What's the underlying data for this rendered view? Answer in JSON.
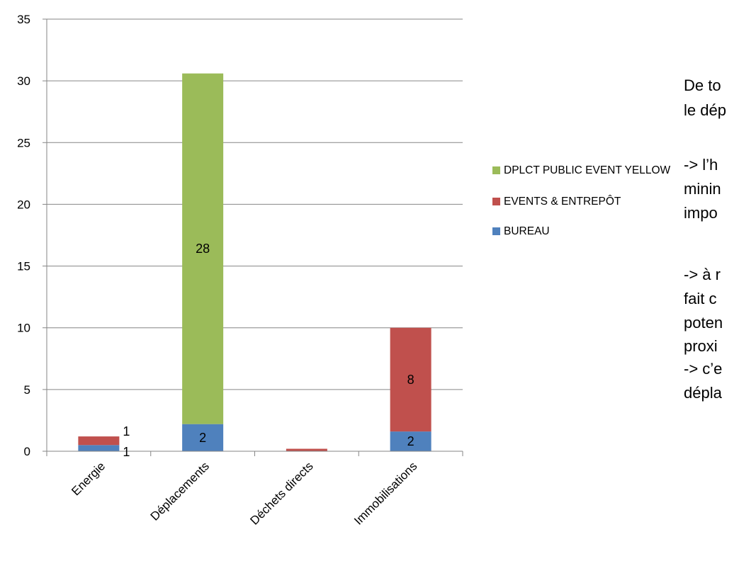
{
  "chart_data": {
    "type": "bar",
    "stacked": true,
    "categories": [
      "Energie",
      "Déplacements",
      "Déchets directs",
      "Immobilisations"
    ],
    "series": [
      {
        "name": "BUREAU",
        "color": "#4f81bd",
        "values": [
          0.5,
          2.2,
          0,
          1.6
        ],
        "labels": [
          "1",
          "2",
          "",
          "2"
        ]
      },
      {
        "name": "EVENTS & ENTREPÔT",
        "color": "#c0504d",
        "values": [
          0.7,
          0,
          0.2,
          8.4
        ],
        "labels": [
          "1",
          "",
          "",
          "8"
        ]
      },
      {
        "name": "DPLCT PUBLIC EVENT YELLOW",
        "color": "#9bbb59",
        "values": [
          0,
          28.4,
          0,
          0
        ],
        "labels": [
          "",
          "28",
          "",
          ""
        ]
      }
    ],
    "yticks": [
      "0",
      "5",
      "10",
      "15",
      "20",
      "25",
      "30",
      "35"
    ],
    "ylim": [
      0,
      35
    ],
    "grid": true,
    "legend_position": "right",
    "gridline_color": "#868686"
  },
  "side_text": {
    "lines": [
      "De to",
      "le dép",
      "",
      "-> l’h",
      "minin",
      "impo",
      "",
      "-> à r",
      "fait c",
      "poten",
      "proxi",
      "-> c’e",
      "dépla"
    ]
  }
}
